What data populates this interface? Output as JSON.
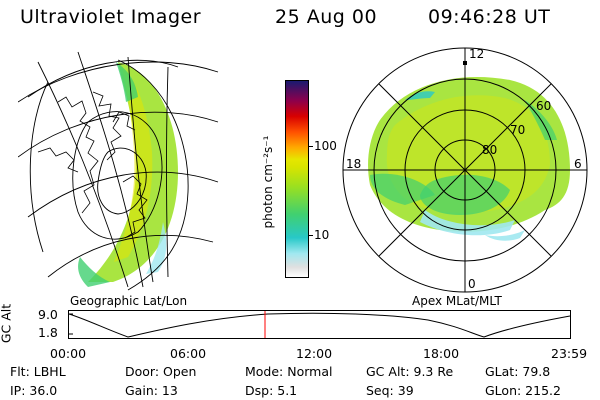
{
  "header": {
    "instrument": "Ultraviolet Imager",
    "date": "25 Aug 00",
    "time": "09:46:28 UT"
  },
  "geo_panel": {
    "caption": "Geographic Lat/Lon"
  },
  "polar_panel": {
    "caption": "Apex MLat/MLT",
    "mlt_labels": [
      "12",
      "18",
      "6",
      "0"
    ],
    "lat_labels": [
      "60",
      "70",
      "80"
    ]
  },
  "colorbar": {
    "unit_label": "photon cm⁻²s⁻¹",
    "ticks": [
      "100",
      "10"
    ],
    "scale": "log",
    "colors": [
      "#e0e0e0",
      "#a0e8f0",
      "#28c8c8",
      "#40d070",
      "#9ae020",
      "#e6e600",
      "#ffaa00",
      "#ff5000",
      "#d80000",
      "#8c004c",
      "#1a1a70"
    ]
  },
  "altitude_plot": {
    "ylabel": "GC Alt",
    "yticks": [
      "9.0",
      "1.8"
    ],
    "xticks": [
      "00:00",
      "06:00",
      "12:00",
      "18:00",
      "23:59"
    ],
    "cursor_time": "09:46"
  },
  "footer": {
    "row1": [
      "Flt: LBHL",
      "Door: Open",
      "Mode: Normal",
      "GC Alt: 9.3 Re",
      "GLat:  79.8"
    ],
    "row2": [
      "IP: 36.0",
      "Gain: 13",
      "Dsp:    5.1",
      "Seq: 39",
      "GLon: 215.2"
    ]
  },
  "accent_colors": {
    "cursor": "#ff0000"
  }
}
